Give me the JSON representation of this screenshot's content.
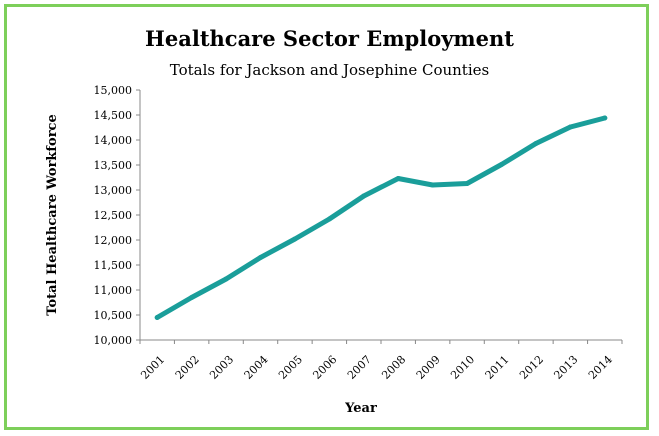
{
  "chart_data": {
    "type": "line",
    "title": "Healthcare Sector Employment",
    "subtitle": "Totals for Jackson and Josephine Counties",
    "xlabel": "Year",
    "ylabel": "Total Healthcare Workforce",
    "categories": [
      "2001",
      "2002",
      "2003",
      "2004",
      "2005",
      "2006",
      "2007",
      "2008",
      "2009",
      "2010",
      "2011",
      "2012",
      "2013",
      "2014"
    ],
    "values": [
      10450,
      10850,
      11220,
      11650,
      12020,
      12420,
      12880,
      13230,
      13100,
      13130,
      13510,
      13930,
      14260,
      14440
    ],
    "ylim": [
      10000,
      15000
    ],
    "yticks": [
      "10,000",
      "10,500",
      "11,000",
      "11,500",
      "12,000",
      "12,500",
      "13,000",
      "13,500",
      "14,000",
      "14,500",
      "15,000"
    ],
    "grid": false,
    "legend": "none",
    "colors": {
      "line": "#1a9e9a",
      "border": "#7dcf5a",
      "axis": "#888888"
    }
  }
}
